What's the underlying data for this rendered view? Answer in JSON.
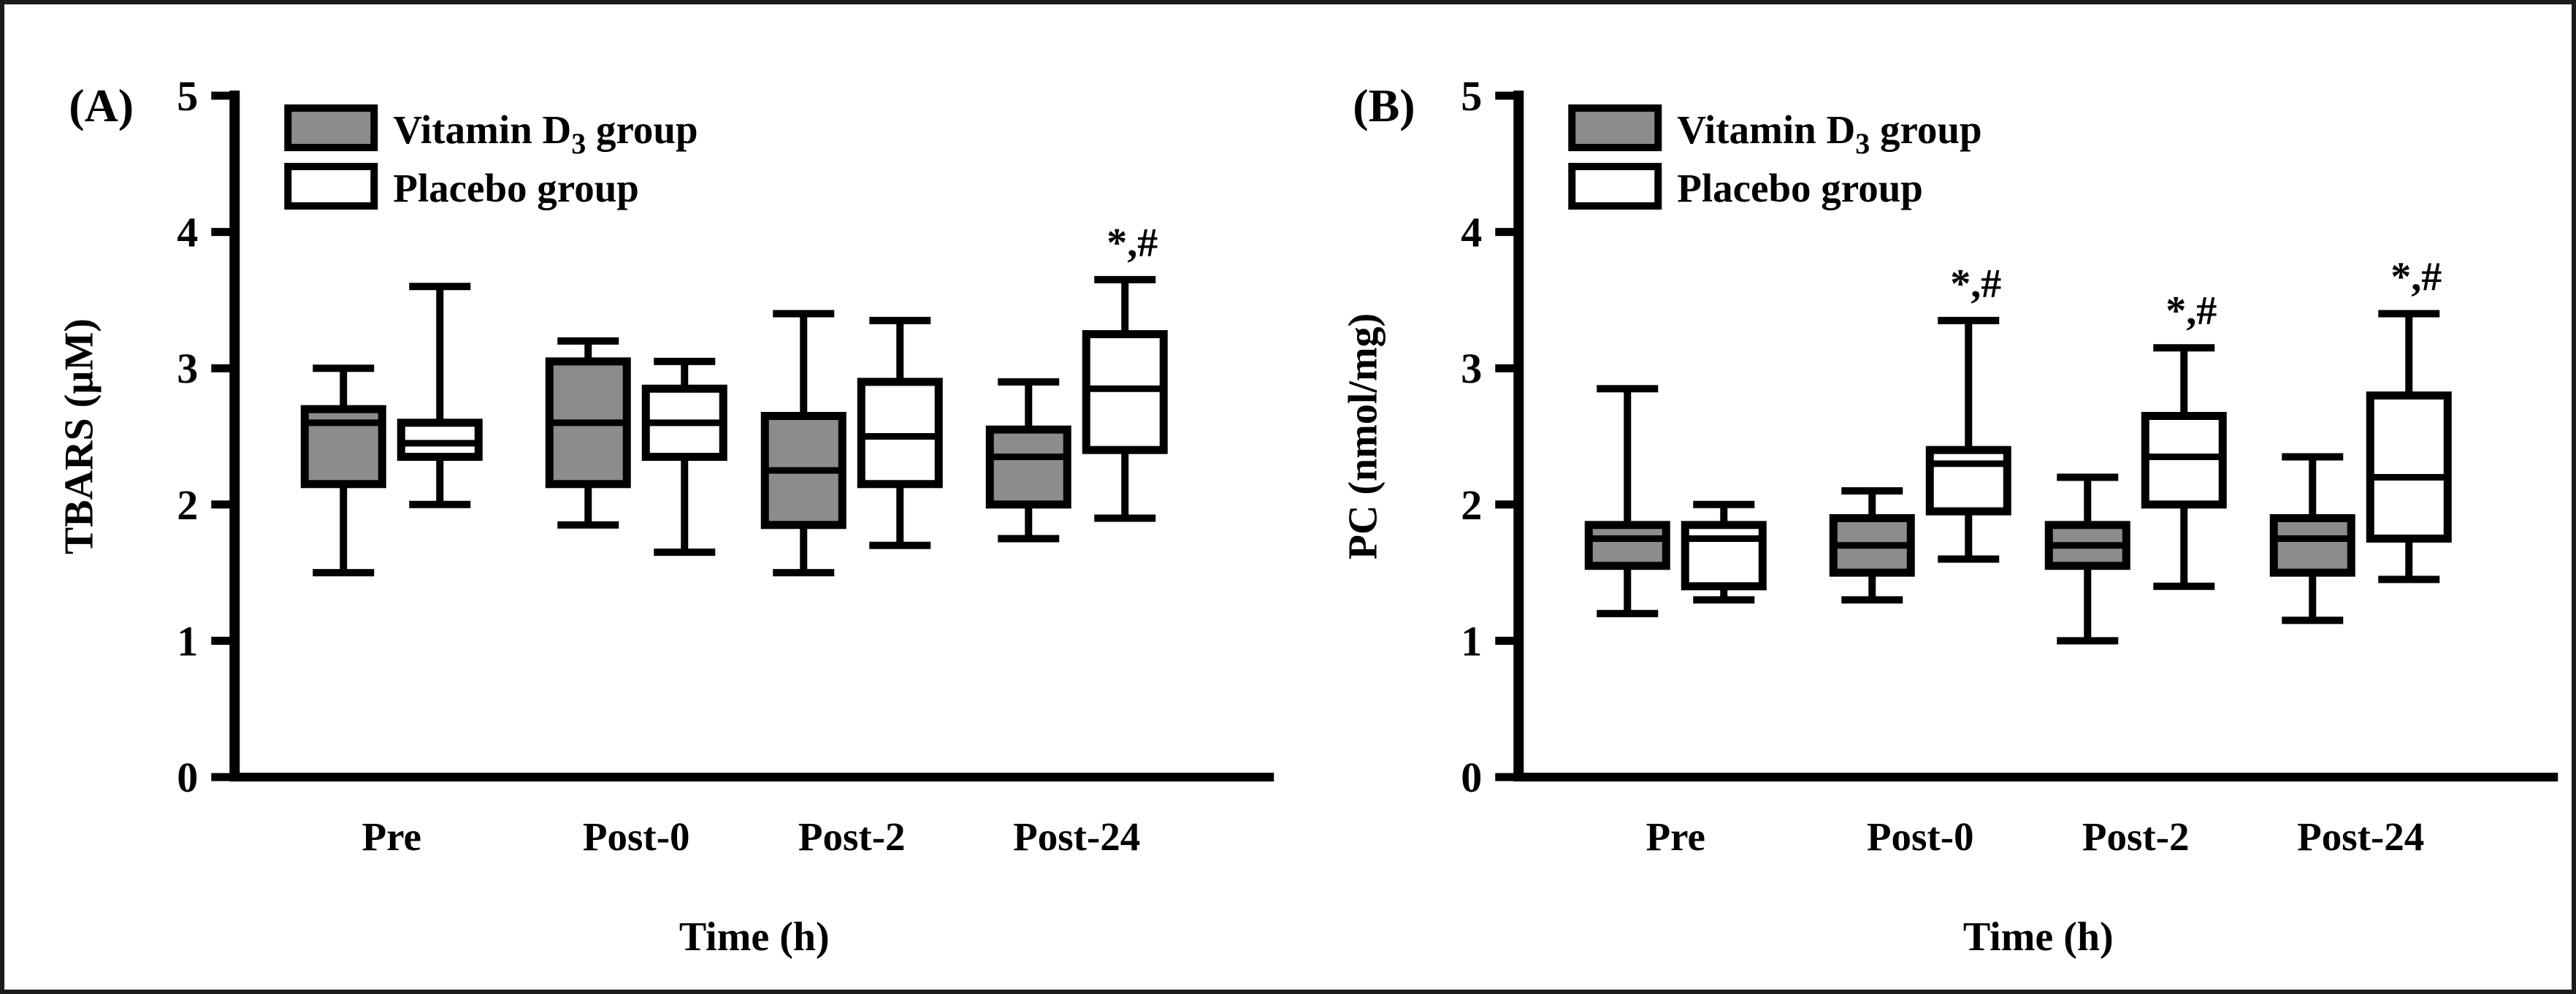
{
  "figure": {
    "background": "#ffffff",
    "border_color": "#1c1c1c"
  },
  "colors": {
    "vitamin_d_fill": "#8c8c8c",
    "placebo_fill": "#ffffff",
    "line": "#000000"
  },
  "chart_data": [
    {
      "type": "boxplot",
      "panel_label": "(A)",
      "ylabel": "TBARS (µM)",
      "xlabel": "Time (h)",
      "ylim": [
        0,
        5
      ],
      "yticks": [
        0,
        1,
        2,
        3,
        4,
        5
      ],
      "categories": [
        "Pre",
        "Post-0",
        "Post-2",
        "Post-24"
      ],
      "grid": false,
      "legend_position": "top-left",
      "legend": [
        {
          "text_main": "Vitamin D",
          "text_sub": "3",
          "text_rest": " group",
          "fill": "#8c8c8c"
        },
        {
          "text_main": "Placebo group",
          "text_sub": "",
          "text_rest": "",
          "fill": "#ffffff"
        }
      ],
      "series": [
        {
          "name": "Vitamin D3 group",
          "fill": "#8c8c8c",
          "boxes": [
            {
              "low": 1.5,
              "q1": 2.15,
              "median": 2.6,
              "q3": 2.7,
              "high": 3.0
            },
            {
              "low": 1.85,
              "q1": 2.15,
              "median": 2.6,
              "q3": 3.05,
              "high": 3.2
            },
            {
              "low": 1.5,
              "q1": 1.85,
              "median": 2.25,
              "q3": 2.65,
              "high": 3.4
            },
            {
              "low": 1.75,
              "q1": 2.0,
              "median": 2.35,
              "q3": 2.55,
              "high": 2.9
            }
          ]
        },
        {
          "name": "Placebo group",
          "fill": "#ffffff",
          "boxes": [
            {
              "low": 2.0,
              "q1": 2.35,
              "median": 2.45,
              "q3": 2.6,
              "high": 3.6
            },
            {
              "low": 1.65,
              "q1": 2.35,
              "median": 2.6,
              "q3": 2.85,
              "high": 3.05
            },
            {
              "low": 1.7,
              "q1": 2.15,
              "median": 2.5,
              "q3": 2.9,
              "high": 3.35
            },
            {
              "low": 1.9,
              "q1": 2.4,
              "median": 2.85,
              "q3": 3.25,
              "high": 3.65,
              "annotation": "*,#"
            }
          ]
        }
      ]
    },
    {
      "type": "boxplot",
      "panel_label": "(B)",
      "ylabel": "PC (nmol/mg)",
      "xlabel": "Time (h)",
      "ylim": [
        0,
        5
      ],
      "yticks": [
        0,
        1,
        2,
        3,
        4,
        5
      ],
      "categories": [
        "Pre",
        "Post-0",
        "Post-2",
        "Post-24"
      ],
      "grid": false,
      "legend_position": "top-left",
      "legend": [
        {
          "text_main": "Vitamin D",
          "text_sub": "3",
          "text_rest": " group",
          "fill": "#8c8c8c"
        },
        {
          "text_main": "Placebo group",
          "text_sub": "",
          "text_rest": "",
          "fill": "#ffffff"
        }
      ],
      "series": [
        {
          "name": "Vitamin D3 group",
          "fill": "#8c8c8c",
          "boxes": [
            {
              "low": 1.2,
              "q1": 1.55,
              "median": 1.75,
              "q3": 1.85,
              "high": 2.85
            },
            {
              "low": 1.3,
              "q1": 1.5,
              "median": 1.7,
              "q3": 1.9,
              "high": 2.1
            },
            {
              "low": 1.0,
              "q1": 1.55,
              "median": 1.7,
              "q3": 1.85,
              "high": 2.2
            },
            {
              "low": 1.15,
              "q1": 1.5,
              "median": 1.75,
              "q3": 1.9,
              "high": 2.35
            }
          ]
        },
        {
          "name": "Placebo group",
          "fill": "#ffffff",
          "boxes": [
            {
              "low": 1.3,
              "q1": 1.4,
              "median": 1.75,
              "q3": 1.85,
              "high": 2.0
            },
            {
              "low": 1.6,
              "q1": 1.95,
              "median": 2.3,
              "q3": 2.4,
              "high": 3.35,
              "annotation": "*,#"
            },
            {
              "low": 1.4,
              "q1": 2.0,
              "median": 2.35,
              "q3": 2.65,
              "high": 3.15,
              "annotation": "*,#"
            },
            {
              "low": 1.45,
              "q1": 1.75,
              "median": 2.2,
              "q3": 2.8,
              "high": 3.4,
              "annotation": "*,#"
            }
          ]
        }
      ]
    }
  ]
}
